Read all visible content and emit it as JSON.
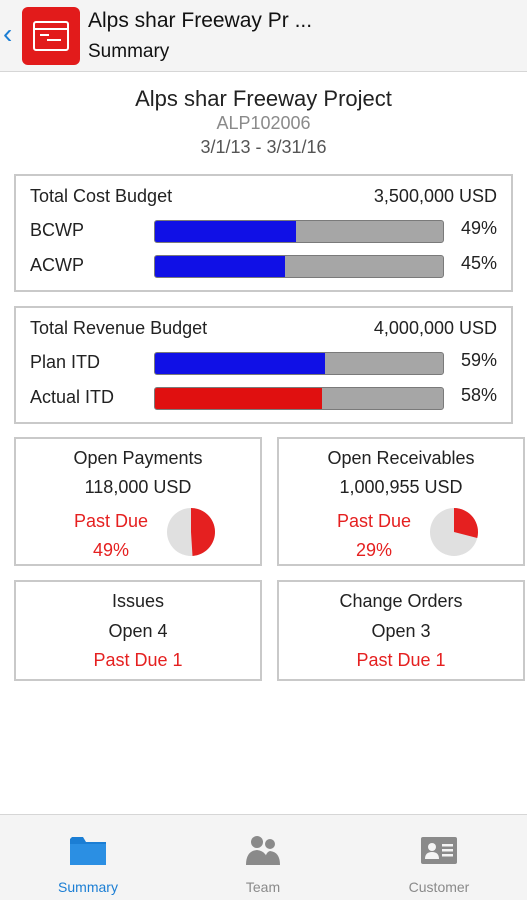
{
  "appbar": {
    "title": "Alps shar Freeway Pr ...",
    "subtitle": "Summary"
  },
  "project": {
    "name": "Alps shar Freeway Project",
    "code": "ALP102006",
    "dates": "3/1/13 - 3/31/16"
  },
  "cost": {
    "label": "Total Cost Budget",
    "amount": "3,500,000 USD",
    "rows": [
      {
        "label": "BCWP",
        "pct_text": "49%",
        "value": 49,
        "color": "#1010e6"
      },
      {
        "label": "ACWP",
        "pct_text": "45%",
        "value": 45,
        "color": "#1010e6"
      }
    ]
  },
  "revenue": {
    "label": "Total Revenue Budget",
    "amount": "4,000,000 USD",
    "rows": [
      {
        "label": "Plan ITD",
        "pct_text": "59%",
        "value": 59,
        "color": "#1010e6"
      },
      {
        "label": "Actual ITD",
        "pct_text": "58%",
        "value": 58,
        "color": "#e01010"
      }
    ]
  },
  "payments": {
    "title": "Open Payments",
    "amount": "118,000 USD",
    "past_due_label": "Past Due",
    "past_due_pct": "49%",
    "value": 49
  },
  "receivables": {
    "title": "Open Receivables",
    "amount": "1,000,955 USD",
    "past_due_label": "Past Due",
    "past_due_pct": "29%",
    "value": 29
  },
  "issues": {
    "title": "Issues",
    "open": "Open 4",
    "past_due": "Past Due 1"
  },
  "change_orders": {
    "title": "Change Orders",
    "open": "Open 3",
    "past_due": "Past Due 1"
  },
  "nav": [
    {
      "label": "Summary",
      "icon": "folder-icon",
      "active": true
    },
    {
      "label": "Team",
      "icon": "team-icon",
      "active": false
    },
    {
      "label": "Customer",
      "icon": "contact-card-icon",
      "active": false
    }
  ],
  "colors": {
    "accent": "#1b7ed4",
    "danger": "#e52020",
    "bar_track": "#a6a6a6",
    "pie_track": "#e0e0e0",
    "inactive": "#8a8a8a"
  }
}
